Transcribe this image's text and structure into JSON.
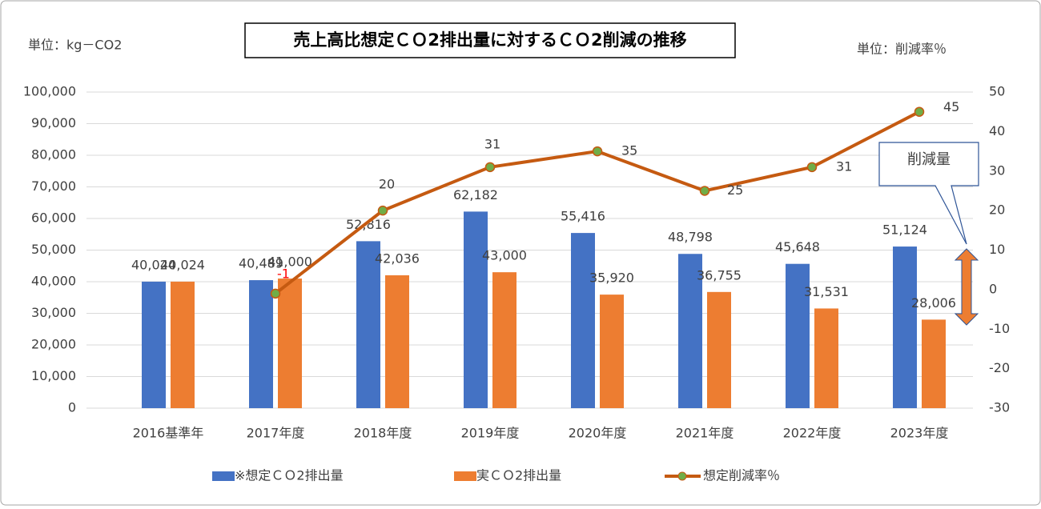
{
  "chart_data": {
    "type": "bar",
    "title": "売上高比想定ＣＯ2排出量に対するＣＯ2削減の推移",
    "unit_left": "単位：kg－CO2",
    "unit_right": "単位：削減率％",
    "callout": "削減量",
    "categories": [
      "2016基準年",
      "2017年度",
      "2018年度",
      "2019年度",
      "2020年度",
      "2021年度",
      "2022年度",
      "2023年度"
    ],
    "series": [
      {
        "name": "※想定ＣＯ2排出量",
        "color": "#4472c4",
        "type": "bar",
        "values": [
          40024,
          40489,
          52816,
          62182,
          55416,
          48798,
          45648,
          51124
        ],
        "value_labels": [
          "40,024",
          "40,489",
          "52,816",
          "62,182",
          "55,416",
          "48,798",
          "45,648",
          "51,124"
        ]
      },
      {
        "name": "実ＣＯ2排出量",
        "color": "#ed7d31",
        "type": "bar",
        "values": [
          40024,
          41000,
          42036,
          43000,
          35920,
          36755,
          31531,
          28006
        ],
        "value_labels": [
          "40,024",
          "41,000",
          "42,036",
          "43,000",
          "35,920",
          "36,755",
          "31,531",
          "28,006"
        ]
      },
      {
        "name": "想定削減率％",
        "color": "#c55a11",
        "marker_color": "#70ad47",
        "type": "line",
        "axis": "y2",
        "values": [
          null,
          -1,
          20,
          31,
          35,
          25,
          31,
          45
        ]
      }
    ],
    "ylim": [
      0,
      100000
    ],
    "yticks": [
      0,
      {
        "value": 10000,
        "label": "10,000"
      },
      {
        "value": 20000,
        "label": "20,000"
      },
      {
        "value": 30000,
        "label": "30,000"
      },
      {
        "value": 40000,
        "label": "40,000"
      },
      {
        "value": 50000,
        "label": "50,000"
      },
      {
        "value": 60000,
        "label": "60,000"
      },
      {
        "value": 70000,
        "label": "70,000"
      },
      {
        "value": 80000,
        "label": "80,000"
      },
      {
        "value": 90000,
        "label": "90,000"
      },
      {
        "value": 100000,
        "label": "100,000"
      }
    ],
    "y2lim": [
      -30,
      50
    ],
    "y2ticks": [
      -30,
      -20,
      -10,
      0,
      10,
      20,
      30,
      40,
      50
    ],
    "grid": true,
    "legend": "bottom"
  }
}
